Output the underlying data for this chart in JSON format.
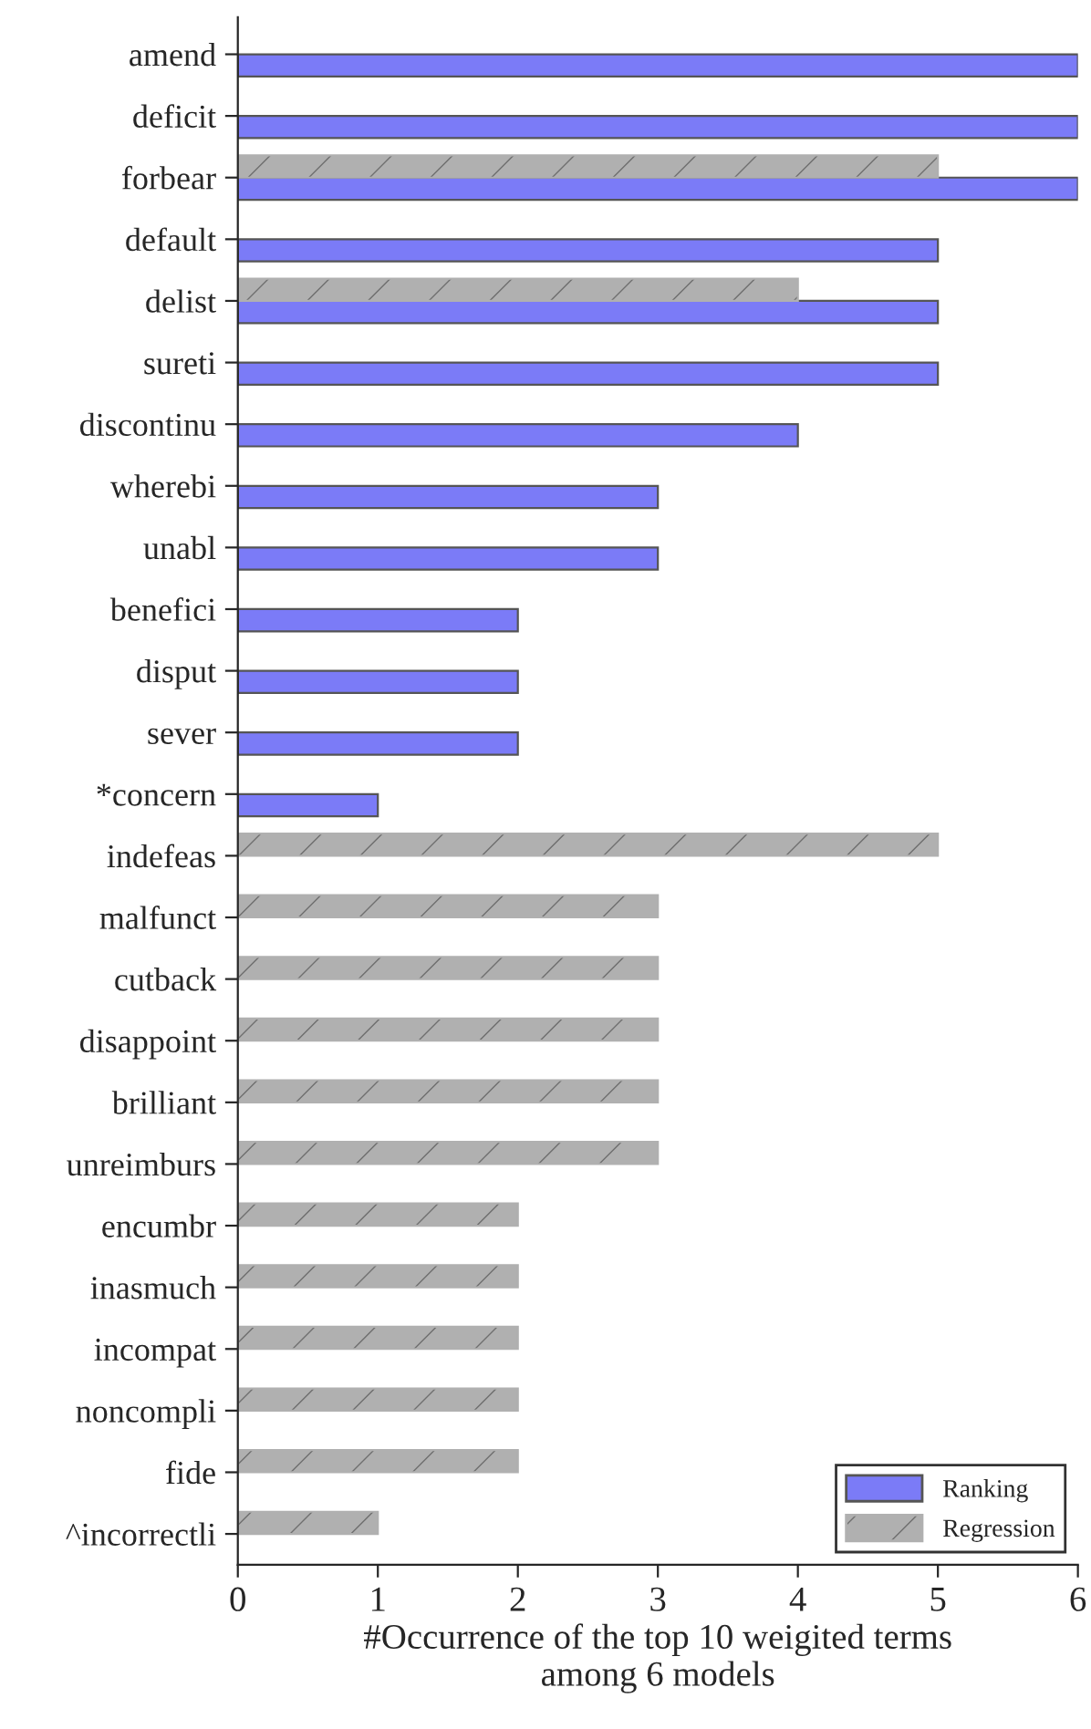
{
  "chart_data": {
    "type": "bar",
    "orientation": "horizontal",
    "xlabel": "#Occurrence of the top 10 weigited terms\namong 6 models",
    "categories": [
      "amend",
      "deficit",
      "forbear",
      "default",
      "delist",
      "sureti",
      "discontinu",
      "wherebi",
      "unabl",
      "benefici",
      "disput",
      "sever",
      "*concern",
      "indefeas",
      "malfunct",
      "cutback",
      "disappoint",
      "brilliant",
      "unreimburs",
      "encumbr",
      "inasmuch",
      "incompat",
      "noncompli",
      "fide",
      "^incorrectli"
    ],
    "series": [
      {
        "name": "Ranking",
        "color": "#7b7bf7",
        "values": [
          6,
          6,
          6,
          5,
          5,
          5,
          4,
          3,
          3,
          2,
          2,
          2,
          1,
          null,
          null,
          null,
          null,
          null,
          null,
          null,
          null,
          null,
          null,
          null,
          null
        ]
      },
      {
        "name": "Regression",
        "color": "#b0b0b0",
        "values": [
          null,
          null,
          5,
          null,
          4,
          null,
          null,
          null,
          null,
          null,
          null,
          null,
          null,
          5,
          3,
          3,
          3,
          3,
          3,
          2,
          2,
          2,
          2,
          2,
          1
        ]
      }
    ],
    "xlim": [
      0,
      6
    ],
    "xticks": [
      0,
      1,
      2,
      3,
      4,
      5,
      6
    ],
    "legend": "bottom right",
    "grid": false
  }
}
